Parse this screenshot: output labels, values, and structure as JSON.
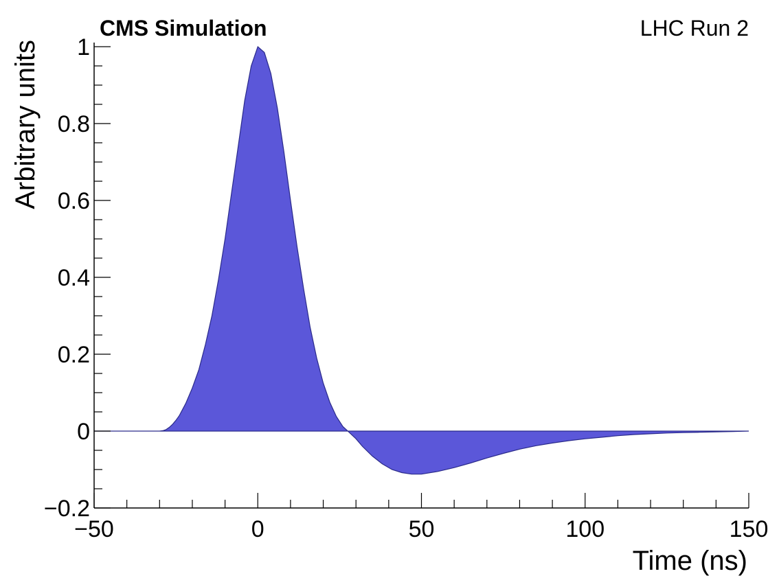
{
  "header": {
    "experiment_label": "CMS Simulation",
    "run_label": "LHC Run 2"
  },
  "chart_data": {
    "type": "area",
    "xlabel": "Time (ns)",
    "ylabel": "Arbitrary units",
    "xlim": [
      -50,
      150
    ],
    "ylim": [
      -0.2,
      1.0
    ],
    "x_ticks": [
      -50,
      0,
      50,
      100,
      150
    ],
    "x_tick_labels": [
      "−50",
      "0",
      "50",
      "100",
      "150"
    ],
    "y_ticks": [
      -0.2,
      0,
      0.2,
      0.4,
      0.6,
      0.8,
      1
    ],
    "y_tick_labels": [
      "−0.2",
      "0",
      "0.2",
      "0.4",
      "0.6",
      "0.8",
      "1"
    ],
    "grid": false,
    "fill_color": "#5b57d9",
    "series": [
      {
        "x": [
          -50,
          -40,
          -30,
          -29,
          -28,
          -27,
          -26,
          -25,
          -24,
          -22,
          -20,
          -18,
          -16,
          -14,
          -12,
          -10,
          -8,
          -6,
          -4,
          -2,
          0,
          2,
          4,
          6,
          8,
          10,
          12,
          14,
          16,
          18,
          20,
          22,
          24,
          26,
          28,
          30,
          32,
          35,
          38,
          41,
          44,
          47,
          50,
          55,
          60,
          65,
          70,
          75,
          80,
          85,
          90,
          95,
          100,
          105,
          110,
          115,
          120,
          125,
          130,
          135,
          140,
          145,
          150
        ],
        "y": [
          0,
          0,
          0,
          0.001,
          0.004,
          0.01,
          0.018,
          0.028,
          0.04,
          0.072,
          0.112,
          0.16,
          0.225,
          0.3,
          0.395,
          0.5,
          0.62,
          0.74,
          0.86,
          0.95,
          1.0,
          0.985,
          0.93,
          0.84,
          0.725,
          0.6,
          0.48,
          0.37,
          0.27,
          0.19,
          0.125,
          0.075,
          0.038,
          0.012,
          -0.004,
          -0.02,
          -0.04,
          -0.065,
          -0.085,
          -0.1,
          -0.108,
          -0.112,
          -0.112,
          -0.105,
          -0.095,
          -0.083,
          -0.07,
          -0.058,
          -0.047,
          -0.038,
          -0.031,
          -0.025,
          -0.02,
          -0.016,
          -0.012,
          -0.009,
          -0.007,
          -0.005,
          -0.004,
          -0.003,
          -0.002,
          -0.001,
          0
        ]
      }
    ]
  }
}
